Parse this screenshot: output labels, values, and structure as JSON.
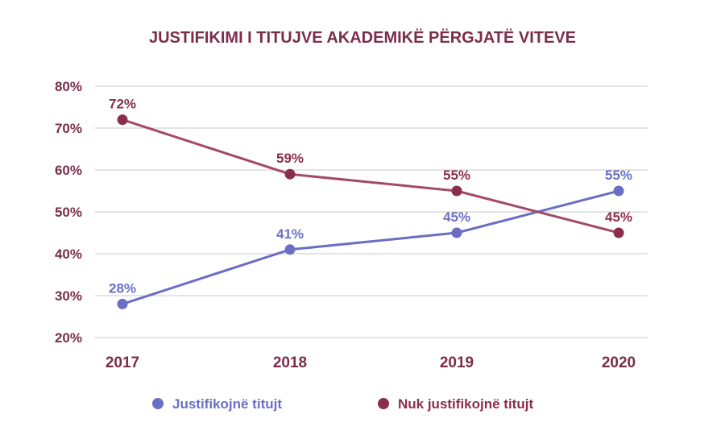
{
  "chart_data": {
    "type": "line",
    "title": "JUSTIFIKIMI I TITUJVE AKADEMIKË PËRGJATË VITEVE",
    "xlabel": "",
    "ylabel": "",
    "categories": [
      "2017",
      "2018",
      "2019",
      "2020"
    ],
    "y_ticks": [
      "20%",
      "30%",
      "40%",
      "50%",
      "60%",
      "70%",
      "80%"
    ],
    "y_tick_values": [
      20,
      30,
      40,
      50,
      60,
      70,
      80
    ],
    "ylim": [
      20,
      80
    ],
    "grid": true,
    "legend_position": "bottom",
    "series": [
      {
        "name": "Justifikojnë titujt",
        "color": "#6b6fc4",
        "values": [
          28,
          41,
          45,
          55
        ],
        "labels": [
          "28%",
          "41%",
          "45%",
          "55%"
        ]
      },
      {
        "name": "Nuk justifikojnë titujt",
        "color": "#a34a6a",
        "marker_color": "#8a2e4e",
        "values": [
          72,
          59,
          55,
          45
        ],
        "labels": [
          "72%",
          "59%",
          "55%",
          "45%"
        ]
      }
    ]
  },
  "colors": {
    "text": "#7a2e4a",
    "grid": "#c9c9c9"
  }
}
